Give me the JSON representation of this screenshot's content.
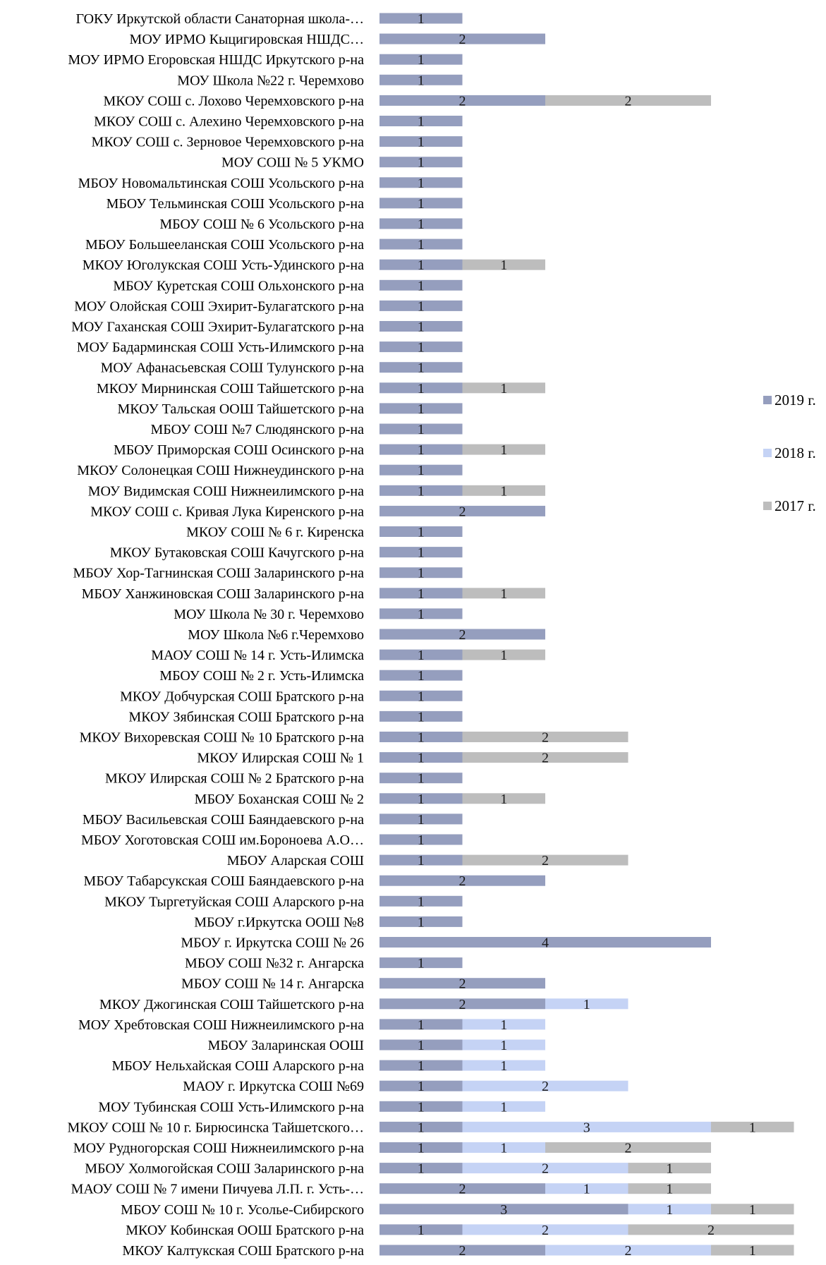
{
  "chart_data": {
    "type": "bar",
    "orientation": "horizontal",
    "stacked": true,
    "legend_position": "right",
    "grid": false,
    "categories": [
      "ГОКУ Иркутской области Санаторная школа-…",
      "МОУ ИРМО Кыцигировская НШДС…",
      "МОУ ИРМО Егоровская НШДС Иркутского р-на",
      "МОУ Школа №22 г. Черемхово",
      "МКОУ СОШ с. Лохово Черемховского р-на",
      "МКОУ СОШ с. Алехино Черемховского р-на",
      "МКОУ СОШ с. Зерновое Черемховского р-на",
      "МОУ СОШ № 5 УКМО",
      "МБОУ Новомальтинская СОШ Усольского р-на",
      "МБОУ Тельминская СОШ Усольского р-на",
      "МБОУ СОШ № 6 Усольского р-на",
      "МБОУ Большееланская СОШ Усольского р-на",
      "МКОУ Юголукская СОШ Усть-Удинского р-на",
      "МБОУ Куретская СОШ Ольхонского р-на",
      "МОУ Олойская СОШ Эхирит-Булагатского р-на",
      "МОУ Гаханская СОШ Эхирит-Булагатского р-на",
      "МОУ Бадарминская СОШ Усть-Илимского р-на",
      "МОУ Афанасьевская СОШ Тулунского р-на",
      "МКОУ Мирнинская СОШ Тайшетского р-на",
      "МКОУ Тальская ООШ Тайшетского р-на",
      "МБОУ СОШ №7 Слюдянского р-на",
      "МБОУ Приморская СОШ Осинского р-на",
      "МКОУ Солонецкая СОШ Нижнеудинского р-на",
      "МОУ Видимская СОШ Нижнеилимского р-на",
      "МКОУ СОШ с. Кривая Лука Киренского р-на",
      "МКОУ СОШ № 6 г. Киренска",
      "МКОУ Бутаковская СОШ Качугского р-на",
      "МБОУ Хор-Тагнинская СОШ Заларинского р-на",
      "МБОУ Ханжиновская СОШ Заларинского р-на",
      "МОУ Школа № 30 г. Черемхово",
      "МОУ Школа №6 г.Черемхово",
      "МАОУ СОШ № 14 г. Усть-Илимска",
      "МБОУ СОШ № 2 г. Усть-Илимска",
      "МКОУ Добчурская СОШ Братского р-на",
      "МКОУ Зябинская СОШ Братского р-на",
      "МКОУ Вихоревская СОШ № 10 Братского р-на",
      "МКОУ Илирская СОШ № 1",
      "МКОУ Илирская СОШ № 2 Братского р-на",
      "МБОУ Боханская СОШ № 2",
      "МБОУ Васильевская СОШ Баяндаевского р-на",
      "МБОУ Хоготовская СОШ им.Бороноева А.О…",
      "МБОУ Аларская СОШ",
      "МБОУ Табарсукская СОШ Баяндаевского р-на",
      "МКОУ Тыргетуйская СОШ Аларского р-на",
      "МБОУ г.Иркутска ООШ №8",
      "МБОУ г. Иркутска СОШ № 26",
      "МБОУ СОШ №32 г. Ангарска",
      "МБОУ СОШ № 14 г. Ангарска",
      "МКОУ Джогинская СОШ Тайшетского р-на",
      "МОУ Хребтовская СОШ Нижнеилимского р-на",
      "МБОУ Заларинская ООШ",
      "МБОУ Нельхайская СОШ Аларского р-на",
      "МАОУ г. Иркутска СОШ №69",
      "МОУ Тубинская СОШ Усть-Илимского р-на",
      "МКОУ СОШ № 10 г. Бирюсинска Тайшетского…",
      "МОУ Рудногорская СОШ Нижнеилимского р-на",
      "МБОУ Холмогойская СОШ Заларинского р-на",
      "МАОУ СОШ № 7 имени Пичуева Л.П. г. Усть-…",
      "МБОУ СОШ № 10 г. Усолье-Сибирского",
      "МКОУ Кобинская ООШ Братского р-на",
      "МКОУ Калтукская СОШ Братского р-на"
    ],
    "series": [
      {
        "name": "2019 г.",
        "color": "#959EBE",
        "values": [
          1,
          2,
          1,
          1,
          2,
          1,
          1,
          1,
          1,
          1,
          1,
          1,
          1,
          1,
          1,
          1,
          1,
          1,
          1,
          1,
          1,
          1,
          1,
          1,
          2,
          1,
          1,
          1,
          1,
          1,
          2,
          1,
          1,
          1,
          1,
          1,
          1,
          1,
          1,
          1,
          1,
          1,
          2,
          1,
          1,
          4,
          1,
          2,
          2,
          1,
          1,
          1,
          1,
          1,
          1,
          1,
          1,
          2,
          3,
          1,
          2
        ]
      },
      {
        "name": "2018 г.",
        "color": "#C5D3F5",
        "values": [
          0,
          0,
          0,
          0,
          0,
          0,
          0,
          0,
          0,
          0,
          0,
          0,
          0,
          0,
          0,
          0,
          0,
          0,
          0,
          0,
          0,
          0,
          0,
          0,
          0,
          0,
          0,
          0,
          0,
          0,
          0,
          0,
          0,
          0,
          0,
          0,
          0,
          0,
          0,
          0,
          0,
          0,
          0,
          0,
          0,
          0,
          0,
          0,
          1,
          1,
          1,
          1,
          2,
          1,
          3,
          1,
          2,
          1,
          1,
          2,
          2
        ]
      },
      {
        "name": "2017 г.",
        "color": "#BDBDBD",
        "values": [
          0,
          0,
          0,
          0,
          2,
          0,
          0,
          0,
          0,
          0,
          0,
          0,
          1,
          0,
          0,
          0,
          0,
          0,
          1,
          0,
          0,
          1,
          0,
          1,
          0,
          0,
          0,
          0,
          1,
          0,
          0,
          1,
          0,
          0,
          0,
          2,
          2,
          0,
          1,
          0,
          0,
          2,
          0,
          0,
          0,
          0,
          0,
          0,
          0,
          0,
          0,
          0,
          0,
          0,
          1,
          2,
          1,
          1,
          1,
          2,
          1
        ]
      }
    ],
    "xlim": [
      0,
      5
    ]
  }
}
